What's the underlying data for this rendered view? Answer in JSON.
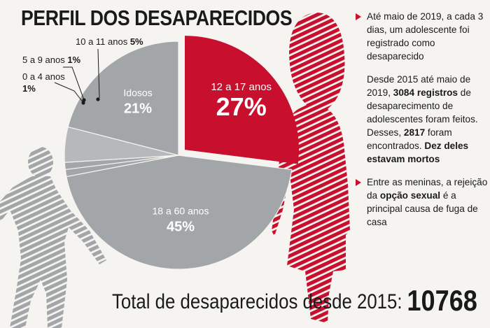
{
  "title": "PERFIL DOS DESAPARECIDOS",
  "chart_data": {
    "type": "pie",
    "title": "PERFIL DOS DESAPARECIDOS",
    "slices": [
      {
        "label": "12 a 17 anos",
        "value": 27,
        "display": "27%",
        "color": "#c8102e",
        "exploded": true
      },
      {
        "label": "18 a 60 anos",
        "value": 45,
        "display": "45%",
        "color": "#a3a6a8"
      },
      {
        "label": "0 a 4 anos",
        "value": 1,
        "display": "1%",
        "color": "#a3a6a8"
      },
      {
        "label": "5 a 9 anos",
        "value": 1,
        "display": "1%",
        "color": "#a3a6a8"
      },
      {
        "label": "10 a 11 anos",
        "value": 5,
        "display": "5%",
        "color": "#b6b9bb"
      },
      {
        "label": "Idosos",
        "value": 21,
        "display": "21%",
        "color": "#a3a6a8"
      }
    ]
  },
  "callouts": {
    "c10": {
      "label": "10 a 11 anos",
      "value": "5%"
    },
    "c5": {
      "label": "5 a 9 anos",
      "value": "1%"
    },
    "c0": {
      "label": "0 a 4 anos",
      "value": "1%"
    }
  },
  "notes": {
    "n1": {
      "text": "Até maio de 2019, a cada 3 dias, um adolescente foi registrado como desaparecido"
    },
    "n2": {
      "a": "Desde 2015 até maio de 2019, ",
      "b": "3084 registros",
      "c": " de desaparecimento de adolescentes foram feitos. Desses, ",
      "d": "2817",
      "e": " foram encontrados. ",
      "f": "Dez deles estavam mortos"
    },
    "n3": {
      "a": "Entre as meninas, a rejeição da ",
      "b": "opção sexual",
      "c": " é a principal causa de fuga de casa"
    }
  },
  "total": {
    "label": "Total de desaparecidos desde 2015:",
    "value": "10768"
  },
  "colors": {
    "accent": "#c8102e",
    "gray": "#a3a6a8",
    "text": "#1a1a1a",
    "background": "#f5f4f0"
  }
}
